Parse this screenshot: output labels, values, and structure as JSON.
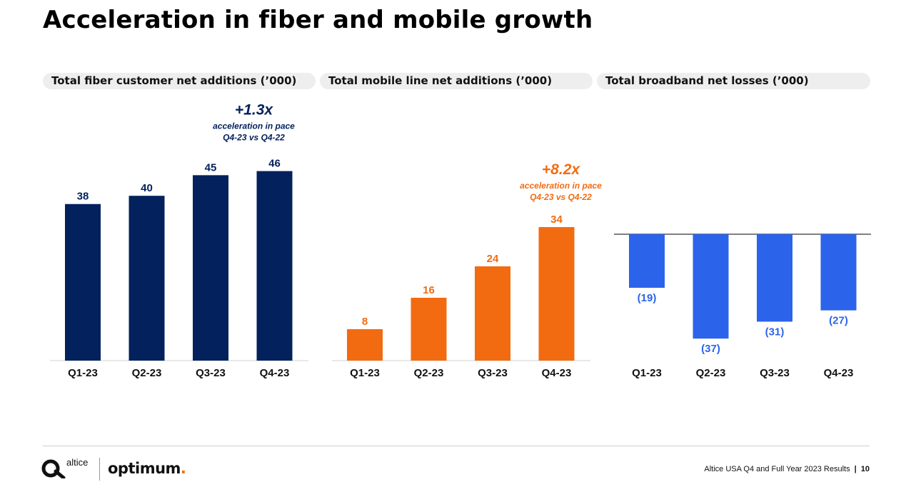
{
  "title": "Acceleration in fiber and mobile growth",
  "colors": {
    "navy": "#03215C",
    "orange": "#F26B11",
    "blue": "#2B63EB",
    "axis": "#000000"
  },
  "chart_data": [
    {
      "type": "bar",
      "title": "Total fiber customer net additions (’000)",
      "categories": [
        "Q1-23",
        "Q2-23",
        "Q3-23",
        "Q4-23"
      ],
      "values": [
        38,
        40,
        45,
        46
      ],
      "labels": [
        "38",
        "40",
        "45",
        "46"
      ],
      "ylim": [
        0,
        50
      ],
      "color": "navy",
      "callout": {
        "headline": "+1.3x",
        "line1": "acceleration in pace",
        "line2": "Q4-23 vs Q4-22"
      }
    },
    {
      "type": "bar",
      "title": "Total mobile line net additions (’000)",
      "categories": [
        "Q1-23",
        "Q2-23",
        "Q3-23",
        "Q4-23"
      ],
      "values": [
        8,
        16,
        24,
        34
      ],
      "labels": [
        "8",
        "16",
        "24",
        "34"
      ],
      "ylim": [
        0,
        50
      ],
      "color": "orange",
      "callout": {
        "headline": "+8.2x",
        "line1": "acceleration in pace",
        "line2": "Q4-23 vs Q4-22"
      }
    },
    {
      "type": "bar",
      "title": "Total broadband net losses (’000)",
      "categories": [
        "Q1-23",
        "Q2-23",
        "Q3-23",
        "Q4-23"
      ],
      "values": [
        -19,
        -37,
        -31,
        -27
      ],
      "labels": [
        "(19)",
        "(37)",
        "(31)",
        "(27)"
      ],
      "ylim": [
        -45,
        0
      ],
      "color": "blue",
      "callout": null
    }
  ],
  "footer": {
    "brand_altice": "altice",
    "brand_optimum": "optimum",
    "brand_optimum_dot": ".",
    "report": "Altice USA Q4 and Full Year 2023 Results",
    "separator": "|",
    "page": "10"
  }
}
